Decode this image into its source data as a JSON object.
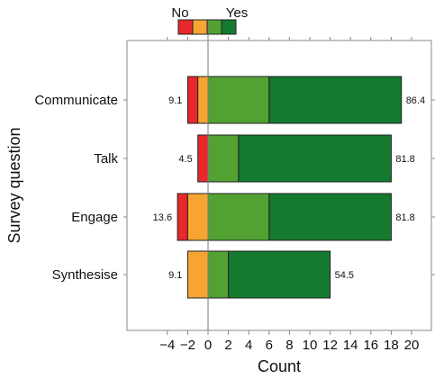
{
  "chart_data": {
    "type": "bar",
    "orientation": "horizontal",
    "stacked": "diverging",
    "xlabel": "Count",
    "ylabel": "Survey question",
    "xlim": [
      -6,
      22
    ],
    "xticks": [
      -4,
      -2,
      0,
      2,
      4,
      6,
      8,
      10,
      12,
      14,
      16,
      18,
      20
    ],
    "xtick_labels": [
      "−4",
      "−2",
      "0",
      "2",
      "4",
      "6",
      "8",
      "10",
      "12",
      "14",
      "16",
      "18",
      "20"
    ],
    "grid": false,
    "legend": {
      "placement": "top-center",
      "left_label": "No",
      "right_label": "Yes"
    },
    "levels": [
      {
        "key": "strong_no",
        "color": "#e8282a"
      },
      {
        "key": "no",
        "color": "#f7a531"
      },
      {
        "key": "yes",
        "color": "#52a233"
      },
      {
        "key": "strong_yes",
        "color": "#147a2f"
      }
    ],
    "categories": [
      "Communicate",
      "Talk",
      "Engage",
      "Synthesise"
    ],
    "rows": [
      {
        "category": "Communicate",
        "strong_no": 1,
        "no": 1,
        "yes": 6,
        "strong_yes": 13,
        "left_label": "9.1",
        "right_label": "86.4"
      },
      {
        "category": "Talk",
        "strong_no": 1,
        "no": 0,
        "yes": 3,
        "strong_yes": 15,
        "left_label": "4.5",
        "right_label": "81.8"
      },
      {
        "category": "Engage",
        "strong_no": 1,
        "no": 2,
        "yes": 6,
        "strong_yes": 12,
        "left_label": "13.6",
        "right_label": "81.8"
      },
      {
        "category": "Synthesise",
        "strong_no": 0,
        "no": 2,
        "yes": 2,
        "strong_yes": 10,
        "left_label": "9.1",
        "right_label": "54.5"
      }
    ]
  }
}
